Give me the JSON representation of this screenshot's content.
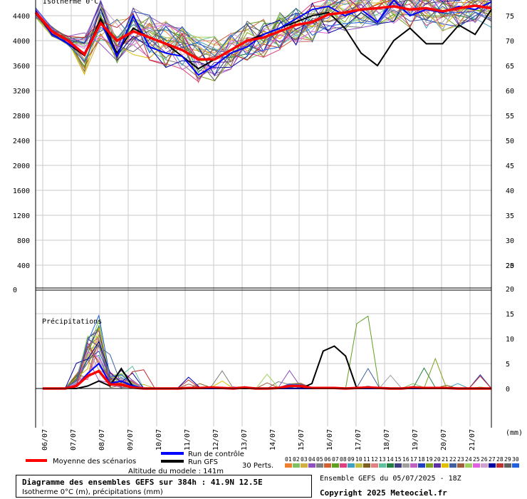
{
  "chart_data": [
    {
      "type": "line",
      "subtitle": "Isotherme 0°C",
      "y_left_ticks": [
        "0",
        "400",
        "800",
        "1200",
        "1600",
        "2000",
        "2400",
        "2800",
        "3200",
        "3600",
        "4000",
        "4400"
      ],
      "y_right_ticks": [
        "20",
        "25",
        "30",
        "35",
        "40",
        "45",
        "50",
        "55",
        "60",
        "65",
        "70",
        "75"
      ],
      "ylim": [
        0,
        4600
      ],
      "series": [
        {
          "name": "Moyenne des scénarios",
          "color": "#ff0000",
          "values": [
            4450,
            4150,
            4000,
            3780,
            4280,
            4000,
            4150,
            4050,
            3950,
            3850,
            3700,
            3700,
            3850,
            4000,
            4050,
            4150,
            4250,
            4300,
            4420,
            4450,
            4500,
            4520,
            4550,
            4500,
            4520,
            4470,
            4520,
            4560,
            4520
          ]
        },
        {
          "name": "Run de contrôle",
          "color": "#0000ff",
          "values": [
            4480,
            4100,
            3950,
            3800,
            4300,
            3750,
            4400,
            3900,
            3800,
            3750,
            3450,
            3600,
            3800,
            3900,
            4100,
            4200,
            4350,
            4500,
            4550,
            4400,
            4500,
            4300,
            4650,
            4400,
            4500,
            4450,
            4550,
            4500,
            4620
          ]
        },
        {
          "name": "Run GFS",
          "color": "#000000",
          "values": [
            4460,
            4100,
            3950,
            3760,
            4350,
            3800,
            4200,
            4050,
            3950,
            3750,
            3550,
            3700,
            3850,
            4000,
            4100,
            4200,
            4300,
            4400,
            4450,
            4200,
            3800,
            3600,
            4000,
            4200,
            3950,
            3950,
            4250,
            4100,
            4500
          ]
        }
      ]
    },
    {
      "type": "line",
      "subtitle": "Précipitations",
      "unit": "(mm)",
      "y_right_ticks": [
        "0",
        "5",
        "10",
        "15",
        "20"
      ],
      "ylim": [
        0,
        20
      ],
      "series": [
        {
          "name": "Moyenne des scénarios",
          "color": "#ff0000",
          "values": [
            0,
            0,
            0,
            0.5,
            2.5,
            3.5,
            0.8,
            0.8,
            0.2,
            0,
            0,
            0,
            0,
            0.1,
            0.1,
            0.2,
            0.1,
            0,
            0.2,
            0,
            0,
            0.1,
            0.5,
            0.5,
            0.1,
            0.1,
            0.1,
            0,
            0.1,
            0.2,
            0.1,
            0,
            0,
            0.2,
            0.1,
            0.1,
            0.1,
            0,
            0,
            0,
            0
          ]
        },
        {
          "name": "Run de contrôle",
          "color": "#0000ff",
          "values": [
            0,
            0,
            0,
            0.5,
            3,
            5,
            1,
            1.5,
            0.5,
            0,
            0,
            0,
            0,
            0,
            0,
            0,
            0,
            0,
            0.3,
            0,
            0,
            0,
            0,
            0,
            0,
            0,
            0,
            0,
            0,
            0,
            0,
            0,
            0,
            0,
            0,
            0,
            0,
            0,
            0,
            0,
            0
          ]
        },
        {
          "name": "Run GFS",
          "color": "#000000",
          "values": [
            0,
            0,
            0,
            0,
            0.5,
            1.5,
            0.5,
            4,
            0.5,
            0,
            0,
            0,
            0,
            0,
            0,
            0,
            0,
            0,
            0,
            0,
            0,
            0,
            0,
            0,
            1,
            7.5,
            8.5,
            6.5,
            0,
            0,
            0,
            0,
            0,
            0,
            0,
            0,
            0,
            0,
            0,
            0,
            0
          ]
        }
      ]
    }
  ],
  "x_labels": [
    "06/07",
    "07/07",
    "08/07",
    "09/07",
    "10/07",
    "11/07",
    "12/07",
    "13/07",
    "14/07",
    "15/07",
    "16/07",
    "17/07",
    "18/07",
    "19/07",
    "20/07",
    "21/07"
  ],
  "labels": {
    "top_partial": "Isotherme 0°C",
    "precip": "Précipitations",
    "mm_unit": "(mm)",
    "legend_mean": "Moyenne des scénarios",
    "legend_control": "Run de contrôle",
    "legend_gfs": "Run GFS",
    "perts": "30 Perts.",
    "altitude": "Altitude du modele : 141m",
    "title_line1": "Diagramme des ensembles GEFS sur 384h : 41.9N 12.5E",
    "title_line2": "Isotherme 0°C (m), précipitations (mm)",
    "ens_run": "Ensemble GEFS du 05/07/2025 - 18Z",
    "copyright": "Copyright 2025 Meteociel.fr"
  },
  "pert_labels": [
    "01",
    "02",
    "03",
    "04",
    "05",
    "06",
    "07",
    "08",
    "09",
    "10",
    "11",
    "12",
    "13",
    "14",
    "15",
    "16",
    "17",
    "18",
    "19",
    "20",
    "21",
    "22",
    "23",
    "24",
    "25",
    "26",
    "27",
    "28",
    "29",
    "30"
  ],
  "pert_colors": [
    "#f08030",
    "#80c060",
    "#d0b040",
    "#9050c0",
    "#808080",
    "#d06030",
    "#60a020",
    "#e04080",
    "#40a0c0",
    "#c0c040",
    "#806020",
    "#e08080",
    "#60c0a0",
    "#208040",
    "#404080",
    "#a0a0a0",
    "#c060c0",
    "#2040c0",
    "#80a020",
    "#6030a0",
    "#e0c000",
    "#4060a0",
    "#a06040",
    "#a0d060",
    "#e060e0",
    "#d0a0d0",
    "#0000a0",
    "#c03030",
    "#606060",
    "#2060e0"
  ]
}
